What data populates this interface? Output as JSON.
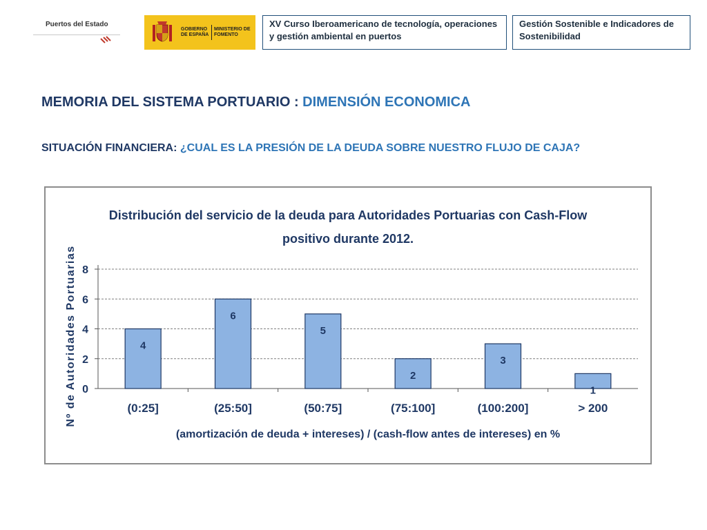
{
  "logos": {
    "puertos": "Puertos del Estado",
    "gobierno": "GOBIERNO DE ESPAÑA",
    "ministerio": "MINISTERIO DE FOMENTO"
  },
  "header": {
    "course": "XV Curso Iberoamericano de tecnología, operaciones y gestión ambiental en puertos",
    "topic": "Gestión Sostenible e Indicadores de Sostenibilidad"
  },
  "title": {
    "main_prefix": "MEMORIA DEL SISTEMA PORTUARIO : ",
    "main_highlight": "DIMENSIÓN ECONOMICA",
    "sub_prefix": "SITUACIÓN FINANCIERA: ",
    "sub_highlight": "¿CUAL ES LA PRESIÓN DE LA DEUDA SOBRE NUESTRO FLUJO DE CAJA?"
  },
  "colors": {
    "title_dark": "#1f3864",
    "title_accent": "#2e75b6",
    "bar_fill": "#8db3e2",
    "bar_stroke": "#1f3864",
    "axis_text": "#1f3864"
  },
  "chart_data": {
    "type": "bar",
    "title_line1": "Distribución del servicio de la deuda para Autoridades Portuarias con Cash-Flow",
    "title_line2": "positivo durante 2012.",
    "categories": [
      "(0:25]",
      "(25:50]",
      "(50:75]",
      "(75:100]",
      "(100:200]",
      "> 200"
    ],
    "values": [
      4,
      6,
      5,
      2,
      3,
      1
    ],
    "data_labels": [
      "4",
      "6",
      "5",
      "2",
      "3",
      "1"
    ],
    "xlabel": "(amortización de deuda + intereses) / (cash-flow antes de intereses) en %",
    "ylabel": "Nº de Autoridades Portuarias",
    "ylim": [
      0,
      8
    ],
    "yticks": [
      "0",
      "2",
      "4",
      "6",
      "8"
    ],
    "grid": "horizontal dashed",
    "legend": "none"
  }
}
